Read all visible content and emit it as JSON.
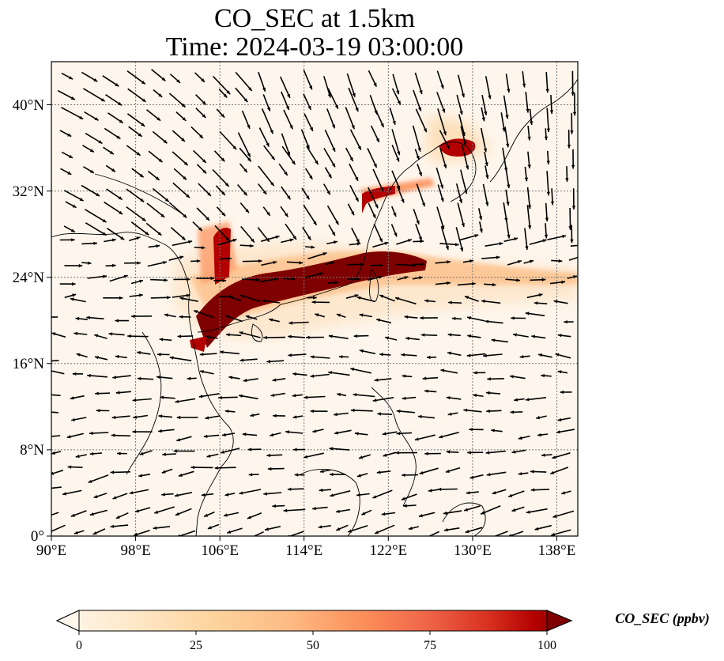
{
  "title": {
    "line1": "CO_SEC at 1.5km",
    "line2": "Time: 2024-03-19 03:00:00"
  },
  "map": {
    "lon_range": [
      90,
      140
    ],
    "lat_range": [
      0,
      44
    ],
    "x_ticks": [
      "90°E",
      "98°E",
      "106°E",
      "114°E",
      "122°E",
      "130°E",
      "138°E"
    ],
    "y_ticks": [
      "0°",
      "8°N",
      "16°N",
      "24°N",
      "32°N",
      "40°N"
    ],
    "gridlines": true,
    "plume_color": "#7f0000",
    "vectors": "wind vectors (quiver)"
  },
  "colorbar": {
    "label": "CO_SEC (ppbv)",
    "ticks": [
      "0",
      "25",
      "50",
      "75",
      "100"
    ],
    "range": [
      0,
      100
    ],
    "colormap": "OrRd",
    "extend": "both"
  }
}
